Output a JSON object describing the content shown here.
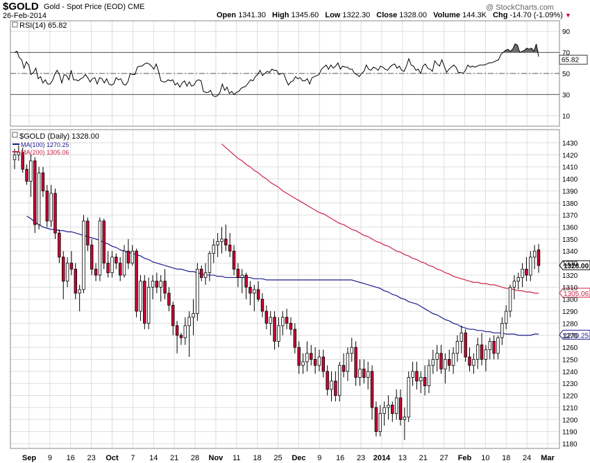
{
  "header": {
    "symbol": "$GOLD",
    "description": "Gold - Spot Price (EOD)",
    "exchange": "CME",
    "date": "26-Feb-2014",
    "watermark": "@ StockCharts.com",
    "open_label": "Open",
    "open": "1341.30",
    "high_label": "High",
    "high": "1345.60",
    "low_label": "Low",
    "low": "1322.30",
    "close_label": "Close",
    "close": "1328.00",
    "volume_label": "Volume",
    "volume": "144.3K",
    "chg_label": "Chg",
    "chg": "-14.70 (-1.09%)"
  },
  "colors": {
    "rsi_line": "#000000",
    "ma100": "#1a1a8c",
    "ma200": "#cc2244",
    "candle_down": "#cc0033",
    "candle_up": "#ffffff",
    "grid": "#dddddd"
  },
  "chart_data": [
    {
      "type": "line",
      "title": "RSI(14) 65.82",
      "legend": "RSI(14) 65.82",
      "ylim": [
        0,
        100
      ],
      "yticks": [
        10,
        30,
        50,
        70,
        90
      ],
      "reference_lines": [
        30,
        50,
        70
      ],
      "last_value_label": "65.82",
      "values": [
        70,
        71,
        65,
        63,
        55,
        61,
        58,
        49,
        51,
        55,
        45,
        47,
        41,
        44,
        40,
        40,
        43,
        49,
        53,
        49,
        41,
        49,
        48,
        44,
        53,
        44,
        44,
        43,
        45,
        46,
        49,
        46,
        42,
        45,
        46,
        40,
        46,
        45,
        41,
        45,
        40,
        39,
        40,
        46,
        44,
        45,
        40,
        39,
        42,
        50,
        49,
        49,
        56,
        57,
        57,
        59,
        60,
        59,
        57,
        54,
        59,
        52,
        43,
        42,
        42,
        44,
        43,
        44,
        39,
        41,
        37,
        41,
        43,
        38,
        42,
        38,
        39,
        43,
        44,
        43,
        33,
        32,
        32,
        34,
        29,
        28,
        29,
        32,
        40,
        34,
        37,
        31,
        33,
        30,
        32,
        33,
        36,
        37,
        38,
        41,
        44,
        43,
        47,
        49,
        53,
        48,
        50,
        52,
        51,
        54,
        53,
        53,
        49,
        50,
        50,
        44,
        39,
        42,
        43,
        47,
        45,
        46,
        43,
        43,
        45,
        40,
        46,
        47,
        48,
        49,
        54,
        56,
        58,
        54,
        58,
        55,
        57,
        60,
        54,
        57,
        56,
        56,
        54,
        54,
        50,
        49,
        47,
        50,
        52,
        58,
        54,
        53,
        56,
        55,
        53,
        57,
        56,
        54,
        53,
        56,
        58,
        59,
        55,
        57,
        53,
        52,
        57,
        64,
        58,
        57,
        53,
        54,
        50,
        57,
        59,
        55,
        54,
        52,
        62,
        59,
        57,
        63,
        57,
        51,
        54,
        56,
        58,
        56,
        51,
        51,
        50,
        53,
        58,
        56,
        57,
        56,
        57,
        58,
        58,
        58,
        59,
        60,
        60,
        61,
        62,
        63,
        68,
        70,
        72,
        73,
        71,
        73,
        78,
        77,
        70,
        71,
        72,
        74,
        73,
        74,
        71,
        78,
        66
      ]
    },
    {
      "type": "candlestick",
      "title": "$GOLD (Daily) 1328.00",
      "ylim": [
        1180,
        1430
      ],
      "yticks": [
        1180,
        1190,
        1200,
        1210,
        1220,
        1230,
        1240,
        1250,
        1260,
        1270,
        1280,
        1290,
        1300,
        1310,
        1320,
        1330,
        1340,
        1350,
        1360,
        1370,
        1380,
        1390,
        1400,
        1410,
        1420,
        1430
      ],
      "x_tick_labels": [
        "Sep",
        "9",
        "16",
        "23",
        "Oct",
        "7",
        "14",
        "21",
        "28",
        "Nov",
        "11",
        "18",
        "25",
        "Dec",
        "9",
        "16",
        "23",
        "2014",
        "13",
        "21",
        "27",
        "Feb",
        "10",
        "18",
        "24",
        "Mar"
      ],
      "x_tick_bold": [
        "Sep",
        "Oct",
        "Nov",
        "Dec",
        "2014",
        "Feb",
        "Mar"
      ],
      "series": [
        {
          "name": "MA(100) 1270.25",
          "last_value_label": "1270.25",
          "values": [
            1369,
            1367,
            1364,
            1362,
            1360,
            1359,
            1358,
            1358,
            1357,
            1357,
            1356,
            1356,
            1355,
            1354,
            1353,
            1352,
            1351,
            1350,
            1349,
            1347,
            1346,
            1344,
            1343,
            1341,
            1340,
            1339,
            1338,
            1337,
            1336,
            1334,
            1333,
            1331,
            1330,
            1329,
            1328,
            1327,
            1326,
            1325,
            1325,
            1324,
            1323,
            1323,
            1322,
            1321,
            1320,
            1320,
            1320,
            1319,
            1319,
            1318,
            1318,
            1318,
            1318,
            1318,
            1318,
            1318,
            1317,
            1317,
            1317,
            1316,
            1316,
            1316,
            1316,
            1316,
            1316,
            1316,
            1316,
            1316,
            1316,
            1316,
            1316,
            1316,
            1316,
            1316,
            1316,
            1316,
            1316,
            1316,
            1316,
            1316,
            1316,
            1315,
            1314,
            1313,
            1312,
            1311,
            1310,
            1309,
            1307,
            1306,
            1304,
            1303,
            1301,
            1300,
            1298,
            1297,
            1296,
            1294,
            1292,
            1290,
            1288,
            1287,
            1285,
            1283,
            1282,
            1280,
            1279,
            1277,
            1276,
            1275,
            1275,
            1274,
            1274,
            1273,
            1273,
            1272,
            1272,
            1272,
            1271,
            1271,
            1271,
            1270,
            1270,
            1270,
            1270,
            1271,
            1271
          ]
        },
        {
          "name": "MA(200) 1305.06",
          "last_value_label": "1305.06",
          "values": [
            1429,
            1426,
            1423,
            1420,
            1417,
            1415,
            1412,
            1410,
            1407,
            1405,
            1402,
            1400,
            1397,
            1395,
            1393,
            1390,
            1388,
            1386,
            1384,
            1382,
            1380,
            1378,
            1376,
            1374,
            1372,
            1371,
            1369,
            1367,
            1365,
            1363,
            1362,
            1360,
            1358,
            1357,
            1355,
            1353,
            1352,
            1350,
            1348,
            1347,
            1345,
            1344,
            1342,
            1340,
            1339,
            1337,
            1336,
            1334,
            1333,
            1331,
            1330,
            1328,
            1327,
            1325,
            1324,
            1322,
            1321,
            1319,
            1318,
            1317,
            1316,
            1315,
            1314,
            1314,
            1313,
            1313,
            1312,
            1312,
            1311,
            1310,
            1309,
            1309,
            1308,
            1307,
            1307,
            1306,
            1306,
            1305,
            1305
          ]
        }
      ],
      "candles": [
        [
          1416,
          1425,
          1408,
          1420
        ],
        [
          1420,
          1428,
          1415,
          1422
        ],
        [
          1422,
          1426,
          1405,
          1408
        ],
        [
          1408,
          1412,
          1395,
          1398
        ],
        [
          1398,
          1420,
          1385,
          1415
        ],
        [
          1415,
          1418,
          1355,
          1362
        ],
        [
          1362,
          1410,
          1358,
          1405
        ],
        [
          1405,
          1410,
          1385,
          1390
        ],
        [
          1390,
          1395,
          1360,
          1365
        ],
        [
          1365,
          1395,
          1360,
          1388
        ],
        [
          1388,
          1392,
          1350,
          1355
        ],
        [
          1355,
          1358,
          1330,
          1335
        ],
        [
          1335,
          1340,
          1300,
          1315
        ],
        [
          1315,
          1335,
          1310,
          1330
        ],
        [
          1330,
          1340,
          1320,
          1325
        ],
        [
          1325,
          1330,
          1300,
          1305
        ],
        [
          1305,
          1312,
          1290,
          1308
        ],
        [
          1308,
          1370,
          1305,
          1365
        ],
        [
          1365,
          1368,
          1340,
          1345
        ],
        [
          1345,
          1350,
          1320,
          1325
        ],
        [
          1325,
          1330,
          1315,
          1320
        ],
        [
          1320,
          1368,
          1315,
          1365
        ],
        [
          1365,
          1367,
          1325,
          1330
        ],
        [
          1330,
          1340,
          1318,
          1322
        ],
        [
          1322,
          1340,
          1318,
          1335
        ],
        [
          1335,
          1338,
          1325,
          1330
        ],
        [
          1330,
          1335,
          1315,
          1320
        ],
        [
          1320,
          1345,
          1318,
          1340
        ],
        [
          1340,
          1350,
          1325,
          1330
        ],
        [
          1330,
          1345,
          1328,
          1340
        ],
        [
          1340,
          1342,
          1285,
          1290
        ],
        [
          1290,
          1320,
          1282,
          1315
        ],
        [
          1315,
          1320,
          1275,
          1280
        ],
        [
          1280,
          1318,
          1275,
          1310
        ],
        [
          1310,
          1320,
          1300,
          1315
        ],
        [
          1315,
          1322,
          1305,
          1310
        ],
        [
          1310,
          1320,
          1298,
          1315
        ],
        [
          1315,
          1325,
          1300,
          1305
        ],
        [
          1305,
          1310,
          1290,
          1295
        ],
        [
          1295,
          1298,
          1270,
          1278
        ],
        [
          1278,
          1282,
          1255,
          1270
        ],
        [
          1270,
          1272,
          1262,
          1268
        ],
        [
          1268,
          1285,
          1262,
          1278
        ],
        [
          1278,
          1290,
          1252,
          1285
        ],
        [
          1285,
          1300,
          1270,
          1288
        ],
        [
          1288,
          1330,
          1282,
          1325
        ],
        [
          1325,
          1328,
          1315,
          1318
        ],
        [
          1318,
          1330,
          1312,
          1322
        ],
        [
          1322,
          1340,
          1315,
          1338
        ],
        [
          1338,
          1350,
          1330,
          1345
        ],
        [
          1345,
          1355,
          1335,
          1348
        ],
        [
          1348,
          1360,
          1338,
          1350
        ],
        [
          1350,
          1362,
          1340,
          1345
        ],
        [
          1345,
          1355,
          1335,
          1340
        ],
        [
          1340,
          1345,
          1320,
          1325
        ],
        [
          1325,
          1330,
          1310,
          1318
        ],
        [
          1318,
          1325,
          1305,
          1320
        ],
        [
          1320,
          1322,
          1300,
          1310
        ],
        [
          1310,
          1315,
          1295,
          1305
        ],
        [
          1305,
          1312,
          1290,
          1308
        ],
        [
          1308,
          1315,
          1298,
          1300
        ],
        [
          1300,
          1305,
          1285,
          1290
        ],
        [
          1290,
          1295,
          1275,
          1280
        ],
        [
          1280,
          1290,
          1270,
          1285
        ],
        [
          1285,
          1290,
          1258,
          1265
        ],
        [
          1265,
          1285,
          1260,
          1278
        ],
        [
          1278,
          1290,
          1270,
          1285
        ],
        [
          1285,
          1292,
          1275,
          1280
        ],
        [
          1280,
          1285,
          1270,
          1275
        ],
        [
          1275,
          1280,
          1255,
          1260
        ],
        [
          1260,
          1265,
          1238,
          1245
        ],
        [
          1245,
          1255,
          1238,
          1248
        ],
        [
          1248,
          1265,
          1240,
          1255
        ],
        [
          1255,
          1262,
          1245,
          1250
        ],
        [
          1250,
          1260,
          1238,
          1245
        ],
        [
          1245,
          1258,
          1240,
          1252
        ],
        [
          1252,
          1258,
          1235,
          1240
        ],
        [
          1240,
          1245,
          1220,
          1225
        ],
        [
          1225,
          1240,
          1215,
          1232
        ],
        [
          1232,
          1240,
          1215,
          1220
        ],
        [
          1220,
          1248,
          1215,
          1245
        ],
        [
          1245,
          1255,
          1235,
          1240
        ],
        [
          1240,
          1260,
          1232,
          1255
        ],
        [
          1255,
          1268,
          1248,
          1260
        ],
        [
          1260,
          1265,
          1228,
          1235
        ],
        [
          1235,
          1250,
          1228,
          1242
        ],
        [
          1242,
          1250,
          1230,
          1235
        ],
        [
          1235,
          1248,
          1225,
          1240
        ],
        [
          1240,
          1245,
          1200,
          1210
        ],
        [
          1210,
          1215,
          1186,
          1190
        ],
        [
          1190,
          1212,
          1186,
          1205
        ],
        [
          1205,
          1215,
          1195,
          1210
        ],
        [
          1210,
          1220,
          1200,
          1212
        ],
        [
          1212,
          1215,
          1198,
          1205
        ],
        [
          1205,
          1225,
          1200,
          1218
        ],
        [
          1218,
          1225,
          1195,
          1200
        ],
        [
          1200,
          1210,
          1183,
          1202
        ],
        [
          1202,
          1240,
          1198,
          1235
        ],
        [
          1235,
          1248,
          1228,
          1240
        ],
        [
          1240,
          1248,
          1225,
          1232
        ],
        [
          1232,
          1240,
          1222,
          1235
        ],
        [
          1235,
          1245,
          1220,
          1228
        ],
        [
          1228,
          1250,
          1222,
          1245
        ],
        [
          1245,
          1258,
          1238,
          1250
        ],
        [
          1250,
          1262,
          1240,
          1255
        ],
        [
          1255,
          1262,
          1238,
          1242
        ],
        [
          1242,
          1255,
          1230,
          1250
        ],
        [
          1250,
          1258,
          1240,
          1245
        ],
        [
          1245,
          1260,
          1238,
          1255
        ],
        [
          1255,
          1270,
          1248,
          1265
        ],
        [
          1265,
          1278,
          1255,
          1272
        ],
        [
          1272,
          1275,
          1248,
          1252
        ],
        [
          1252,
          1260,
          1240,
          1245
        ],
        [
          1245,
          1255,
          1238,
          1250
        ],
        [
          1250,
          1268,
          1242,
          1262
        ],
        [
          1262,
          1272,
          1245,
          1250
        ],
        [
          1250,
          1262,
          1240,
          1258
        ],
        [
          1258,
          1268,
          1250,
          1265
        ],
        [
          1265,
          1270,
          1250,
          1255
        ],
        [
          1255,
          1270,
          1250,
          1268
        ],
        [
          1268,
          1285,
          1262,
          1280
        ],
        [
          1280,
          1295,
          1275,
          1290
        ],
        [
          1290,
          1312,
          1285,
          1310
        ],
        [
          1310,
          1320,
          1300,
          1315
        ],
        [
          1315,
          1322,
          1308,
          1318
        ],
        [
          1318,
          1330,
          1310,
          1325
        ],
        [
          1325,
          1335,
          1315,
          1320
        ],
        [
          1320,
          1340,
          1315,
          1335
        ],
        [
          1335,
          1345,
          1325,
          1340
        ],
        [
          1341,
          1346,
          1322,
          1328
        ]
      ]
    }
  ]
}
